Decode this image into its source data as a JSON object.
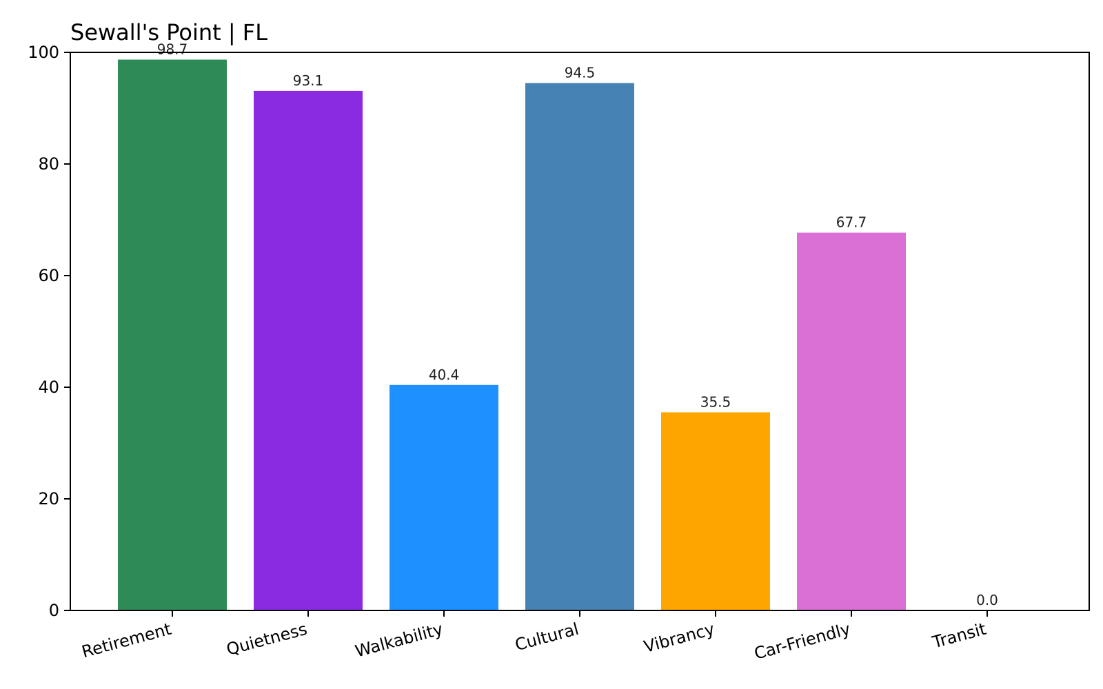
{
  "chart_data": {
    "type": "bar",
    "title": "Sewall's Point | FL",
    "xlabel": "",
    "ylabel": "",
    "categories": [
      "Retirement",
      "Quietness",
      "Walkability",
      "Cultural",
      "Vibrancy",
      "Car-Friendly",
      "Transit"
    ],
    "values": [
      98.7,
      93.1,
      40.4,
      94.5,
      35.5,
      67.7,
      0.0
    ],
    "value_labels": [
      "98.7",
      "93.1",
      "40.4",
      "94.5",
      "35.5",
      "67.7",
      "0.0"
    ],
    "colors": [
      "#2e8b57",
      "#8a2be2",
      "#1e90ff",
      "#4682b4",
      "#ffa500",
      "#da70d6",
      "#808080"
    ],
    "ylim": [
      0,
      100
    ],
    "yticks": [
      0,
      20,
      40,
      60,
      80,
      100
    ],
    "ytick_labels": [
      "0",
      "20",
      "40",
      "60",
      "80",
      "100"
    ],
    "xtick_rotation_deg": -15,
    "grid": false,
    "legend": "none"
  }
}
